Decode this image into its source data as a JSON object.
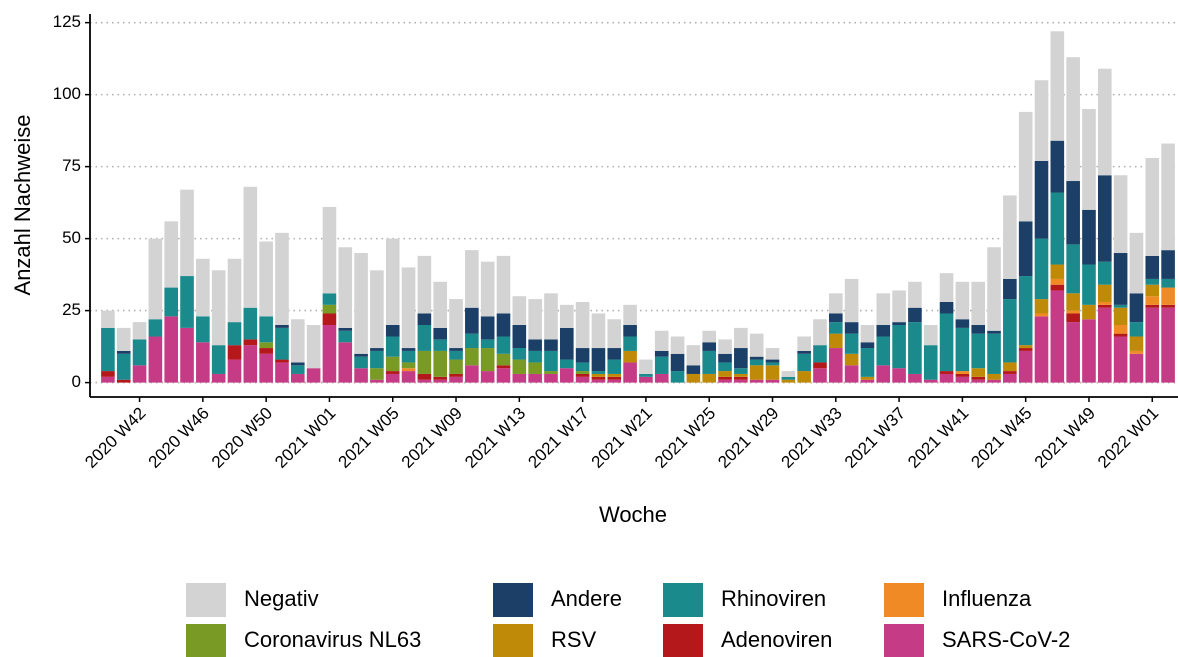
{
  "chart_data": {
    "type": "stacked-bar",
    "x_label": "Woche",
    "y_label": "Anzahl Nachweise",
    "categories": [
      null,
      null,
      "2020 W42",
      null,
      null,
      null,
      "2020 W46",
      null,
      null,
      null,
      "2020 W50",
      null,
      null,
      null,
      "2021 W01",
      null,
      null,
      null,
      "2021 W05",
      null,
      null,
      null,
      "2021 W09",
      null,
      null,
      null,
      "2021 W13",
      null,
      null,
      null,
      "2021 W17",
      null,
      null,
      null,
      "2021 W21",
      null,
      null,
      null,
      "2021 W25",
      null,
      null,
      null,
      "2021 W29",
      null,
      null,
      null,
      "2021 W33",
      null,
      null,
      null,
      "2021 W37",
      null,
      null,
      null,
      "2021 W41",
      null,
      null,
      null,
      "2021 W45",
      null,
      null,
      null,
      "2021 W49",
      null,
      null,
      null,
      "2022 W01",
      null
    ],
    "ylim": [
      -5,
      128
    ],
    "yticks": [
      0,
      25,
      50,
      75,
      100,
      125
    ],
    "grid": true,
    "series": [
      {
        "name": "Negativ",
        "color": "#d3d3d3",
        "values": [
          6,
          8,
          6,
          28,
          23,
          30,
          20,
          26,
          22,
          42,
          26,
          32,
          15,
          15,
          30,
          28,
          35,
          27,
          30,
          28,
          20,
          16,
          17,
          20,
          19,
          20,
          10,
          14,
          16,
          8,
          16,
          12,
          10,
          7,
          5,
          7,
          6,
          7,
          4,
          5,
          7,
          8,
          4,
          2,
          5,
          9,
          7,
          15,
          6,
          11,
          11,
          9,
          7,
          10,
          13,
          15,
          29,
          29,
          38,
          28,
          38,
          43,
          35,
          37,
          27,
          21,
          34,
          37
        ]
      },
      {
        "name": "Coronavirus NL63",
        "color": "#7a9a26",
        "values": [
          0,
          0,
          0,
          0,
          0,
          0,
          0,
          0,
          0,
          0,
          2,
          0,
          0,
          0,
          3,
          0,
          0,
          4,
          5,
          2,
          8,
          9,
          5,
          6,
          8,
          4,
          5,
          4,
          1,
          0,
          1,
          0,
          0,
          0,
          0,
          0,
          0,
          0,
          0,
          0,
          0,
          0,
          0,
          0,
          0,
          0,
          0,
          0,
          0,
          0,
          0,
          0,
          0,
          0,
          0,
          0,
          0,
          0,
          0,
          0,
          0,
          0,
          0,
          0,
          0,
          0,
          0,
          0
        ]
      },
      {
        "name": "Andere",
        "color": "#1b3f66",
        "values": [
          0,
          1,
          0,
          0,
          0,
          0,
          0,
          0,
          0,
          0,
          0,
          1,
          1,
          0,
          0,
          1,
          1,
          1,
          4,
          1,
          4,
          4,
          1,
          9,
          8,
          8,
          8,
          4,
          4,
          11,
          5,
          8,
          4,
          4,
          0,
          2,
          6,
          3,
          3,
          3,
          7,
          1,
          1,
          0,
          1,
          0,
          3,
          4,
          2,
          4,
          1,
          5,
          0,
          4,
          3,
          3,
          1,
          7,
          19,
          27,
          18,
          22,
          19,
          30,
          18,
          10,
          8,
          10
        ]
      },
      {
        "name": "RSV",
        "color": "#bf8a08",
        "values": [
          0,
          0,
          0,
          0,
          0,
          0,
          0,
          0,
          0,
          0,
          0,
          0,
          0,
          0,
          0,
          0,
          0,
          0,
          0,
          0,
          0,
          0,
          0,
          0,
          0,
          0,
          0,
          0,
          0,
          0,
          0,
          1,
          1,
          4,
          0,
          0,
          0,
          3,
          3,
          2,
          1,
          5,
          5,
          1,
          4,
          0,
          5,
          4,
          1,
          0,
          0,
          0,
          0,
          0,
          0,
          3,
          2,
          3,
          1,
          5,
          5,
          6,
          5,
          6,
          6,
          5,
          4,
          0
        ]
      },
      {
        "name": "Rhinoviren",
        "color": "#1a8a8c",
        "values": [
          15,
          9,
          9,
          6,
          10,
          18,
          9,
          10,
          8,
          11,
          9,
          11,
          3,
          0,
          4,
          4,
          4,
          6,
          7,
          4,
          9,
          4,
          3,
          5,
          3,
          6,
          4,
          4,
          7,
          3,
          3,
          1,
          5,
          5,
          1,
          6,
          4,
          0,
          8,
          3,
          2,
          2,
          1,
          1,
          6,
          6,
          4,
          7,
          10,
          10,
          15,
          18,
          12,
          20,
          15,
          12,
          14,
          22,
          24,
          21,
          25,
          17,
          14,
          8,
          1,
          5,
          2,
          3
        ]
      },
      {
        "name": "Adenoviren",
        "color": "#b5181b",
        "values": [
          2,
          1,
          0,
          0,
          0,
          0,
          0,
          0,
          5,
          2,
          2,
          1,
          0,
          0,
          4,
          0,
          0,
          0,
          1,
          0,
          2,
          1,
          1,
          0,
          0,
          1,
          0,
          0,
          0,
          0,
          1,
          1,
          1,
          0,
          0,
          0,
          0,
          0,
          0,
          1,
          1,
          0,
          0,
          0,
          0,
          2,
          0,
          0,
          0,
          0,
          0,
          0,
          0,
          1,
          1,
          1,
          0,
          1,
          1,
          0,
          2,
          3,
          0,
          1,
          1,
          0,
          1,
          1
        ]
      },
      {
        "name": "Influenza",
        "color": "#f08a24",
        "values": [
          0,
          0,
          0,
          0,
          0,
          0,
          0,
          0,
          0,
          0,
          0,
          0,
          0,
          0,
          0,
          0,
          0,
          0,
          0,
          1,
          0,
          0,
          0,
          0,
          0,
          0,
          0,
          0,
          0,
          0,
          0,
          0,
          0,
          0,
          0,
          0,
          0,
          0,
          0,
          0,
          0,
          0,
          0,
          0,
          0,
          0,
          0,
          0,
          0,
          0,
          0,
          0,
          0,
          0,
          1,
          0,
          0,
          0,
          0,
          1,
          2,
          1,
          0,
          1,
          3,
          1,
          3,
          6
        ]
      },
      {
        "name": "SARS-CoV-2",
        "color": "#c63b86",
        "values": [
          2,
          0,
          6,
          16,
          23,
          19,
          14,
          3,
          8,
          13,
          10,
          7,
          3,
          5,
          20,
          14,
          5,
          1,
          3,
          4,
          1,
          1,
          2,
          6,
          4,
          5,
          3,
          3,
          3,
          5,
          2,
          1,
          1,
          7,
          2,
          3,
          0,
          0,
          0,
          1,
          1,
          1,
          1,
          0,
          0,
          5,
          12,
          6,
          1,
          6,
          5,
          3,
          1,
          3,
          2,
          1,
          1,
          3,
          11,
          23,
          32,
          21,
          22,
          26,
          16,
          10,
          26,
          26
        ]
      }
    ]
  }
}
